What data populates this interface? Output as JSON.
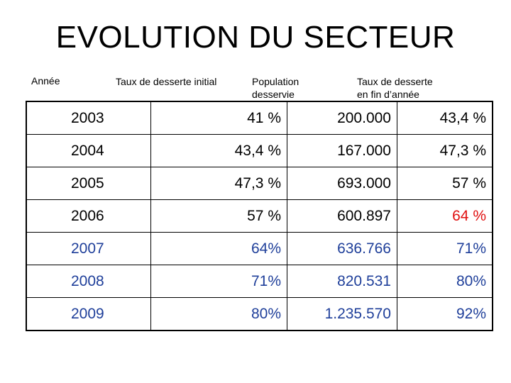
{
  "title": "EVOLUTION DU SECTEUR",
  "columns": {
    "year": "Année",
    "initial_rate": "Taux de desserte initial",
    "population": "Population\ndesservie",
    "end_rate": "Taux de desserte\nen fin d’année"
  },
  "colors": {
    "default": "#000000",
    "highlight": "#e01010",
    "projection": "#1f3f9a"
  },
  "rows": [
    {
      "year": "2003",
      "initial": "41 %",
      "population": "200.000",
      "end": "43,4 %",
      "tone_initial": "default",
      "tone_end": "default"
    },
    {
      "year": "2004",
      "initial": "43,4 %",
      "population": "167.000",
      "end": "47,3 %",
      "tone_initial": "default",
      "tone_end": "default"
    },
    {
      "year": "2005",
      "initial": "47,3 %",
      "population": "693.000",
      "end": "57 %",
      "tone_initial": "default",
      "tone_end": "default"
    },
    {
      "year": "2006",
      "initial": "57 %",
      "population": "600.897",
      "end": "64 %",
      "tone_initial": "default",
      "tone_end": "highlight"
    },
    {
      "year": "2007",
      "initial": "64%",
      "population": "636.766",
      "end": "71%",
      "tone_initial": "projection",
      "tone_end": "projection"
    },
    {
      "year": "2008",
      "initial": "71%",
      "population": "820.531",
      "end": "80%",
      "tone_initial": "projection",
      "tone_end": "projection"
    },
    {
      "year": "2009",
      "initial": "80%",
      "population": "1.235.570",
      "end": "92%",
      "tone_initial": "projection",
      "tone_end": "projection"
    }
  ]
}
